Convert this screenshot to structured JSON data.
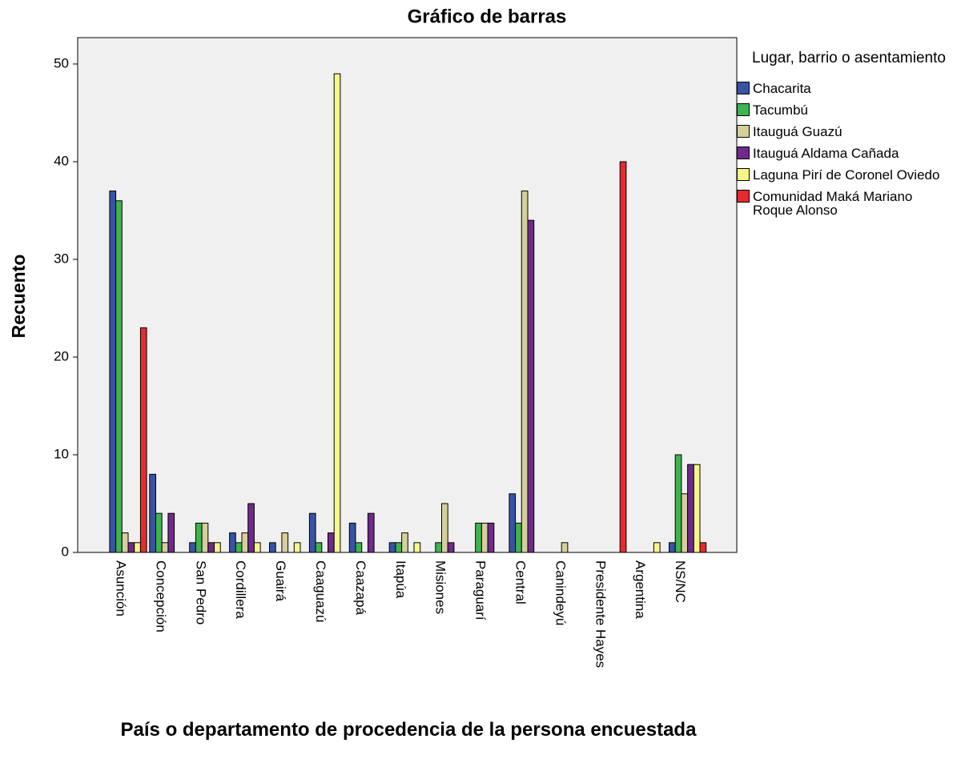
{
  "chart_data": {
    "type": "bar",
    "title": "Gráfico de barras",
    "x_label": "País o departamento de procedencia de la persona encuestada",
    "y_label": "Recuento",
    "legend_title": "Lugar, barrio o asentamiento",
    "legend_position": "right",
    "categories": [
      "Asunción",
      "Concepción",
      "San Pedro",
      "Cordillera",
      "Guairá",
      "Caaguazú",
      "Caazapá",
      "Itapúa",
      "Misiones",
      "Paraguarí",
      "Central",
      "Canindeyú",
      "Presidente Hayes",
      "Argentina",
      "NS/NC"
    ],
    "series": [
      {
        "name": "Chacarita",
        "color": "#3953a4",
        "values": [
          37,
          8,
          1,
          2,
          1,
          4,
          3,
          1,
          0,
          0,
          6,
          0,
          0,
          0,
          1
        ]
      },
      {
        "name": "Tacumbú",
        "color": "#3fb34f",
        "values": [
          36,
          4,
          3,
          1,
          0,
          1,
          1,
          1,
          1,
          3,
          3,
          0,
          0,
          0,
          10
        ]
      },
      {
        "name": "Itauguá Guazú",
        "color": "#d4cf9b",
        "values": [
          2,
          1,
          3,
          2,
          2,
          0,
          0,
          2,
          5,
          3,
          37,
          1,
          0,
          0,
          6
        ]
      },
      {
        "name": "Itauguá Aldama Cañada",
        "color": "#6f2a8c",
        "values": [
          1,
          4,
          1,
          5,
          0,
          2,
          4,
          0,
          1,
          3,
          34,
          0,
          0,
          0,
          9
        ]
      },
      {
        "name": "Laguna Pirí de Coronel Oviedo",
        "color": "#f6f68a",
        "values": [
          1,
          0,
          1,
          1,
          1,
          49,
          0,
          1,
          0,
          0,
          0,
          0,
          0,
          1,
          9
        ]
      },
      {
        "name": "Comunidad Maká Mariano Roque Alonso",
        "color": "#e52b2e",
        "values": [
          23,
          0,
          0,
          0,
          0,
          0,
          0,
          0,
          0,
          0,
          0,
          0,
          40,
          0,
          1
        ]
      }
    ],
    "ylim": [
      0,
      52.7
    ],
    "yticks": [
      0,
      10,
      20,
      30,
      40,
      50
    ],
    "grid": false
  }
}
